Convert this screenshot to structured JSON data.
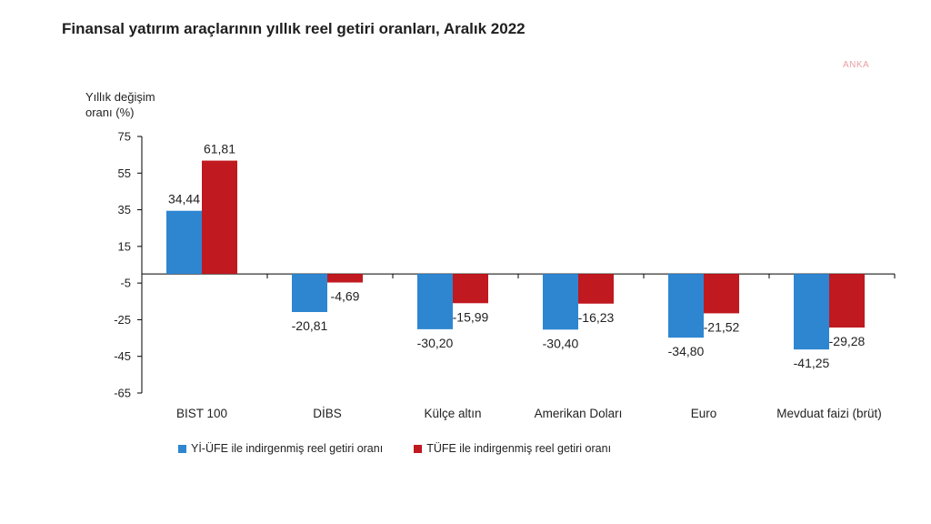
{
  "title": "Finansal yatırım araçlarının yıllık reel getiri oranları, Aralık 2022",
  "watermark": "ANKA",
  "colors": {
    "series1": "#2e86d1",
    "series2": "#c0191f",
    "axis": "#000000"
  },
  "chart_data": {
    "type": "bar",
    "ylabel": "Yıllık değişim oranı (%)",
    "ylabel_lines": [
      "Yıllık değişim",
      "oranı (%)"
    ],
    "ylim": [
      -65,
      75
    ],
    "yticks": [
      75,
      55,
      35,
      15,
      -5,
      -25,
      -45,
      -65
    ],
    "ytick_labels": [
      "75",
      "55",
      "35",
      "15",
      "-5",
      "-25",
      "-45",
      "-65"
    ],
    "grid": false,
    "legend_position": "bottom",
    "categories": [
      "BIST 100",
      "DİBS",
      "Külçe altın",
      "Amerikan Doları",
      "Euro",
      "Mevduat faizi (brüt)"
    ],
    "series": [
      {
        "name": "Yİ-ÜFE ile indirgenmiş reel getiri oranı",
        "values": [
          34.44,
          -20.81,
          -30.2,
          -30.4,
          -34.8,
          -41.25
        ],
        "labels": [
          "34,44",
          "-20,81",
          "-30,20",
          "-30,40",
          "-34,80",
          "-41,25"
        ]
      },
      {
        "name": "TÜFE ile indirgenmiş reel getiri oranı",
        "values": [
          61.81,
          -4.69,
          -15.99,
          -16.23,
          -21.52,
          -29.28
        ],
        "labels": [
          "61,81",
          "-4,69",
          "-15,99",
          "-16,23",
          "-21,52",
          "-29,28"
        ]
      }
    ]
  }
}
